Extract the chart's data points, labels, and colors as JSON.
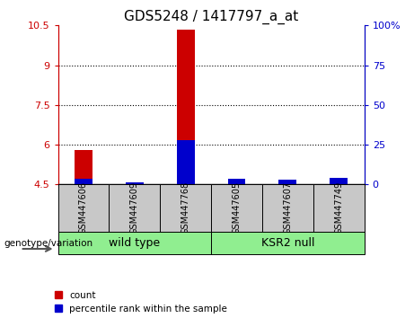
{
  "title": "GDS5248 / 1417797_a_at",
  "samples": [
    "GSM447606",
    "GSM447609",
    "GSM447768",
    "GSM447605",
    "GSM447607",
    "GSM447749"
  ],
  "count_values": [
    5.8,
    4.53,
    10.35,
    4.65,
    4.6,
    4.75
  ],
  "percentile_values": [
    4.73,
    4.57,
    6.18,
    4.72,
    4.68,
    4.75
  ],
  "ylim_left": [
    4.5,
    10.5
  ],
  "ylim_right": [
    0,
    100
  ],
  "yticks_left": [
    4.5,
    6.0,
    7.5,
    9.0,
    10.5
  ],
  "yticks_right": [
    0,
    25,
    50,
    75,
    100
  ],
  "ytick_labels_left": [
    "4.5",
    "6",
    "7.5",
    "9",
    "10.5"
  ],
  "ytick_labels_right": [
    "0",
    "25",
    "50",
    "75",
    "100%"
  ],
  "hlines": [
    6.0,
    7.5,
    9.0
  ],
  "count_color": "#CC0000",
  "percentile_color": "#0000CC",
  "bar_base": 4.5,
  "bar_width": 0.35,
  "group_panel_color": "#C8C8C8",
  "group_bg_color": "#90EE90",
  "legend_count_label": "count",
  "legend_percentile_label": "percentile rank within the sample",
  "genotype_label": "genotype/variation",
  "group_spans": [
    [
      "wild type",
      0,
      2
    ],
    [
      "KSR2 null",
      3,
      5
    ]
  ],
  "title_fontsize": 11,
  "tick_fontsize": 8,
  "sample_fontsize": 7
}
